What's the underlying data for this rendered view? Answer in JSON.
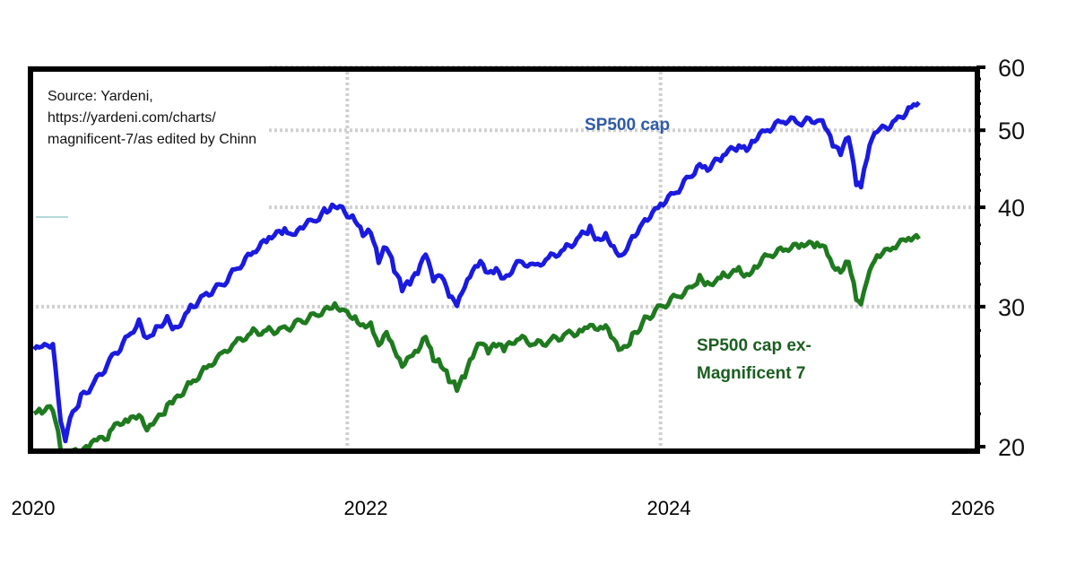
{
  "source_note": "Source: Yardeni, https://yardeni.com/charts/ magnificent-7/as edited by Chinn",
  "chart_data": {
    "type": "line",
    "title": "",
    "xlabel": "",
    "ylabel": "",
    "yscale": "log",
    "ylim": [
      20,
      60
    ],
    "xlim": [
      2020.0,
      2026.0
    ],
    "yticks": [
      20,
      30,
      40,
      50,
      60
    ],
    "xticks": [
      "2020",
      "2022",
      "2024",
      "2026"
    ],
    "grid": true,
    "series": [
      {
        "name": "SP500 cap",
        "color": "#1a1ae0",
        "label_color": "#2f5aa8",
        "label_lines": [
          "SP500 cap"
        ],
        "x": [
          2020.0,
          2020.05,
          2020.12,
          2020.17,
          2020.2,
          2020.23,
          2020.3,
          2020.4,
          2020.5,
          2020.6,
          2020.67,
          2020.72,
          2020.78,
          2020.85,
          2020.9,
          2021.0,
          2021.1,
          2021.2,
          2021.3,
          2021.4,
          2021.5,
          2021.6,
          2021.65,
          2021.7,
          2021.8,
          2021.87,
          2021.92,
          2022.0,
          2022.05,
          2022.1,
          2022.15,
          2022.2,
          2022.25,
          2022.3,
          2022.35,
          2022.4,
          2022.45,
          2022.5,
          2022.55,
          2022.6,
          2022.65,
          2022.7,
          2022.75,
          2022.8,
          2022.85,
          2022.9,
          2022.95,
          2023.0,
          2023.1,
          2023.2,
          2023.3,
          2023.4,
          2023.5,
          2023.55,
          2023.6,
          2023.65,
          2023.7,
          2023.75,
          2023.82,
          2023.9,
          2024.0,
          2024.1,
          2024.2,
          2024.25,
          2024.3,
          2024.4,
          2024.5,
          2024.55,
          2024.6,
          2024.7,
          2024.8,
          2024.9,
          2025.0,
          2025.05,
          2025.1,
          2025.15,
          2025.2,
          2025.25,
          2025.28,
          2025.32,
          2025.35,
          2025.4,
          2025.5,
          2025.6,
          2025.65
        ],
        "values": [
          26.5,
          26.8,
          27.0,
          21.5,
          20.2,
          21.5,
          23.0,
          24.3,
          26.0,
          27.5,
          28.8,
          27.2,
          28.0,
          28.8,
          28.0,
          30.0,
          31.2,
          32.0,
          33.5,
          35.0,
          36.5,
          37.5,
          37.0,
          38.0,
          38.8,
          39.8,
          40.3,
          39.0,
          38.5,
          37.0,
          37.5,
          34.5,
          36.0,
          33.5,
          31.5,
          32.0,
          33.0,
          35.0,
          32.5,
          33.0,
          31.0,
          30.0,
          31.5,
          33.0,
          34.0,
          33.0,
          33.5,
          32.5,
          34.0,
          33.5,
          34.5,
          35.5,
          37.0,
          37.8,
          36.5,
          37.0,
          35.5,
          34.5,
          36.5,
          38.5,
          40.5,
          42.0,
          44.0,
          45.5,
          44.5,
          46.5,
          48.0,
          47.5,
          49.0,
          50.5,
          51.5,
          51.0,
          51.5,
          50.5,
          48.0,
          47.0,
          49.5,
          43.0,
          42.5,
          46.0,
          48.5,
          50.0,
          51.5,
          53.5,
          54.2
        ]
      },
      {
        "name": "SP500 cap ex-Magnificent 7",
        "color": "#1f7a1f",
        "label_color": "#1b5e20",
        "label_lines": [
          "SP500 cap ex-",
          "Magnificent 7"
        ],
        "x": [
          2020.0,
          2020.05,
          2020.12,
          2020.17,
          2020.2,
          2020.23,
          2020.3,
          2020.35,
          2020.4,
          2020.47,
          2020.5,
          2020.6,
          2020.67,
          2020.72,
          2020.78,
          2020.85,
          2020.9,
          2021.0,
          2021.1,
          2021.2,
          2021.3,
          2021.4,
          2021.5,
          2021.6,
          2021.7,
          2021.8,
          2021.87,
          2021.92,
          2022.0,
          2022.05,
          2022.1,
          2022.15,
          2022.2,
          2022.25,
          2022.3,
          2022.35,
          2022.4,
          2022.45,
          2022.5,
          2022.55,
          2022.6,
          2022.65,
          2022.7,
          2022.75,
          2022.8,
          2022.85,
          2022.9,
          2022.95,
          2023.0,
          2023.1,
          2023.2,
          2023.3,
          2023.4,
          2023.5,
          2023.55,
          2023.6,
          2023.65,
          2023.7,
          2023.75,
          2023.82,
          2023.9,
          2024.0,
          2024.1,
          2024.2,
          2024.25,
          2024.3,
          2024.4,
          2024.5,
          2024.55,
          2024.6,
          2024.7,
          2024.8,
          2024.9,
          2025.0,
          2025.05,
          2025.1,
          2025.15,
          2025.2,
          2025.25,
          2025.28,
          2025.32,
          2025.35,
          2025.4,
          2025.5,
          2025.6,
          2025.65
        ],
        "values": [
          22.2,
          22.3,
          22.5,
          20.0,
          19.5,
          19.6,
          19.6,
          20.0,
          20.5,
          20.6,
          21.2,
          21.5,
          21.8,
          20.8,
          21.5,
          22.5,
          23.0,
          24.0,
          25.0,
          26.0,
          27.0,
          27.8,
          28.0,
          28.2,
          28.8,
          29.2,
          29.8,
          30.0,
          29.3,
          29.0,
          28.5,
          28.8,
          27.0,
          28.0,
          26.5,
          25.2,
          26.0,
          26.5,
          27.8,
          26.0,
          25.5,
          24.3,
          23.6,
          24.5,
          26.0,
          27.2,
          26.5,
          27.0,
          26.5,
          27.3,
          26.8,
          27.2,
          27.8,
          28.0,
          28.5,
          28.0,
          28.2,
          27.0,
          26.2,
          27.5,
          29.0,
          30.0,
          30.8,
          31.5,
          32.5,
          31.8,
          32.8,
          33.5,
          33.0,
          33.8,
          34.8,
          35.3,
          35.8,
          36.0,
          35.8,
          34.0,
          33.5,
          34.5,
          30.8,
          30.3,
          32.5,
          34.0,
          35.0,
          36.0,
          36.8,
          36.5
        ]
      }
    ]
  }
}
